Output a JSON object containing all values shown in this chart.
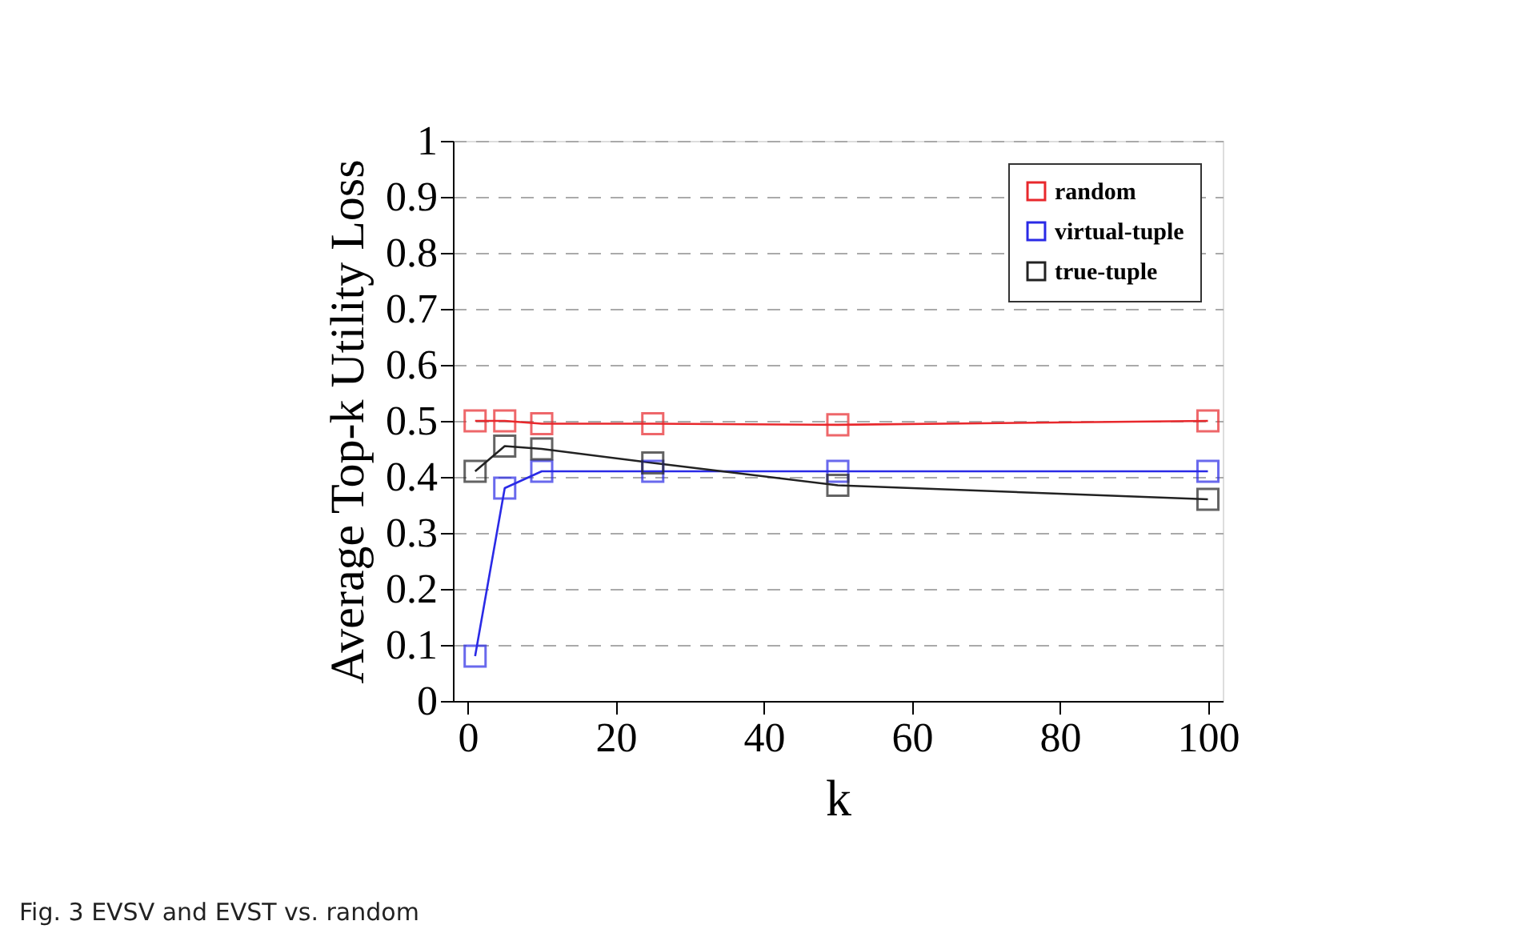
{
  "chart_data": {
    "type": "line",
    "xlabel": "k",
    "ylabel": "Average Top-k Utility Loss",
    "x": [
      1,
      5,
      10,
      25,
      50,
      100
    ],
    "series": [
      {
        "name": "random",
        "color": "#e8282c",
        "values": [
          0.5,
          0.5,
          0.495,
          0.495,
          0.493,
          0.5
        ]
      },
      {
        "name": "virtual-tuple",
        "color": "#2a2ae6",
        "values": [
          0.08,
          0.38,
          0.41,
          0.41,
          0.41,
          0.41
        ]
      },
      {
        "name": "true-tuple",
        "color": "#222222",
        "values": [
          0.41,
          0.455,
          0.45,
          0.425,
          0.385,
          0.36
        ]
      }
    ],
    "xlim": [
      -2,
      102
    ],
    "xticks": [
      0,
      20,
      40,
      60,
      80,
      100
    ],
    "ylim": [
      0,
      1
    ],
    "yticks": [
      0,
      0.1,
      0.2,
      0.3,
      0.4,
      0.5,
      0.6,
      0.7,
      0.8,
      0.9,
      1
    ],
    "grid": "y",
    "legend": "top right",
    "marker": "square",
    "line_style": "solid",
    "annotations": [
      "Fig. 3 EVSV and EVST vs. random"
    ]
  }
}
